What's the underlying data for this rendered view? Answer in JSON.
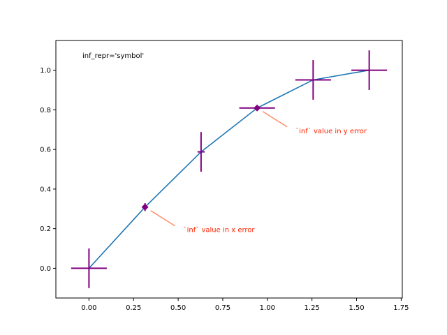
{
  "chart_data": {
    "type": "line",
    "title": "",
    "xlabel": "",
    "ylabel": "",
    "xlim": [
      -0.1855,
      1.7563
    ],
    "ylim": [
      -0.15,
      1.15
    ],
    "xticks": [
      0.0,
      0.25,
      0.5,
      0.75,
      1.0,
      1.25,
      1.5,
      1.75
    ],
    "xtick_labels": [
      "0.00",
      "0.25",
      "0.50",
      "0.75",
      "1.00",
      "1.25",
      "1.50",
      "1.75"
    ],
    "yticks": [
      0.0,
      0.2,
      0.4,
      0.6,
      0.8,
      1.0
    ],
    "ytick_labels": [
      "0.0",
      "0.2",
      "0.4",
      "0.6",
      "0.8",
      "1.0"
    ],
    "grid": false,
    "corner_text": "inf_repr='symbol'",
    "series": [
      {
        "x": [
          0.0,
          0.3142,
          0.6283,
          0.9425,
          1.2566,
          1.5708
        ],
        "y": [
          0.0,
          0.309,
          0.5878,
          0.809,
          0.9511,
          1.0
        ],
        "xerr": [
          0.1,
          "inf",
          0.02,
          0.1,
          0.1,
          0.1
        ],
        "yerr": [
          0.1,
          0.02,
          0.1,
          "inf",
          0.1,
          0.1
        ],
        "line_color": "#1f77b4",
        "errorbar_color": "#800080"
      }
    ],
    "annotations": [
      {
        "text": "`inf` value in x error",
        "x": 0.3142,
        "y": 0.309,
        "color": "#ff2200",
        "arrow_color": "#ff8c69"
      },
      {
        "text": "`inf` value in y error",
        "x": 0.9425,
        "y": 0.809,
        "color": "#ff2200",
        "arrow_color": "#ff8c69"
      }
    ]
  }
}
